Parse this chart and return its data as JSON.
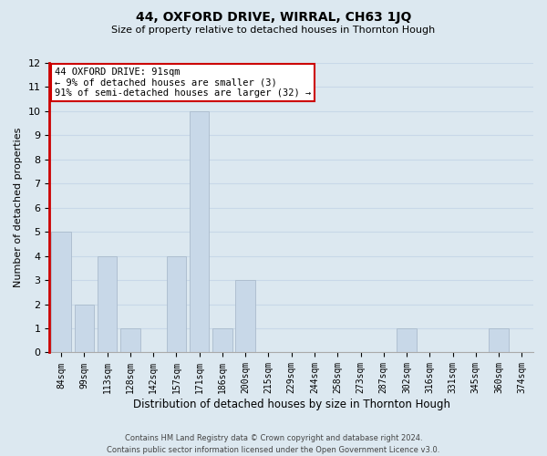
{
  "title": "44, OXFORD DRIVE, WIRRAL, CH63 1JQ",
  "subtitle": "Size of property relative to detached houses in Thornton Hough",
  "xlabel": "Distribution of detached houses by size in Thornton Hough",
  "ylabel": "Number of detached properties",
  "footer_lines": [
    "Contains HM Land Registry data © Crown copyright and database right 2024.",
    "Contains public sector information licensed under the Open Government Licence v3.0."
  ],
  "bin_labels": [
    "84sqm",
    "99sqm",
    "113sqm",
    "128sqm",
    "142sqm",
    "157sqm",
    "171sqm",
    "186sqm",
    "200sqm",
    "215sqm",
    "229sqm",
    "244sqm",
    "258sqm",
    "273sqm",
    "287sqm",
    "302sqm",
    "316sqm",
    "331sqm",
    "345sqm",
    "360sqm",
    "374sqm"
  ],
  "bar_values": [
    5,
    2,
    4,
    1,
    0,
    4,
    10,
    1,
    3,
    0,
    0,
    0,
    0,
    0,
    0,
    1,
    0,
    0,
    0,
    1,
    0
  ],
  "bar_color": "#c8d8e8",
  "bar_edgecolor": "#aabbcc",
  "left_border_color": "#cc0000",
  "annotation_line1": "44 OXFORD DRIVE: 91sqm",
  "annotation_line2": "← 9% of detached houses are smaller (3)",
  "annotation_line3": "91% of semi-detached houses are larger (32) →",
  "annotation_box_color": "#ffffff",
  "annotation_box_edgecolor": "#cc0000",
  "ylim": [
    0,
    12
  ],
  "yticks": [
    0,
    1,
    2,
    3,
    4,
    5,
    6,
    7,
    8,
    9,
    10,
    11,
    12
  ],
  "grid_color": "#c8d8e8",
  "background_color": "#dce8f0",
  "plot_bg_color": "#dce8f0",
  "fig_width": 6.0,
  "fig_height": 5.0
}
